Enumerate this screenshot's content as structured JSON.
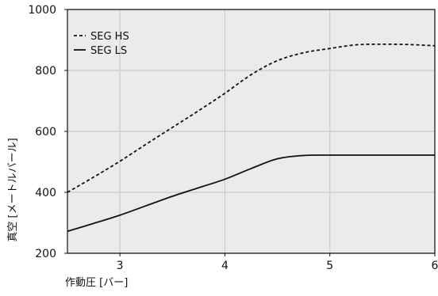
{
  "chart_data": {
    "type": "line",
    "xlabel": "作動圧 [バー]",
    "ylabel": "真空 [メートルバール]",
    "xlim": [
      2.5,
      6
    ],
    "ylim": [
      200,
      1000
    ],
    "xticks": [
      3,
      4,
      5,
      6
    ],
    "yticks": [
      200,
      400,
      600,
      800,
      1000
    ],
    "grid": true,
    "legend_position": "top-left",
    "colors": {
      "plot_bg": "#ebebeb",
      "grid": "#cfcfcf",
      "line": "#111111"
    },
    "series": [
      {
        "name": "SEG HS",
        "style": "dashed",
        "x": [
          2.5,
          2.75,
          3.0,
          3.25,
          3.5,
          3.75,
          4.0,
          4.25,
          4.5,
          4.75,
          5.0,
          5.25,
          5.5,
          5.75,
          6.0
        ],
        "y": [
          400,
          450,
          502,
          558,
          613,
          668,
          725,
          786,
          832,
          858,
          872,
          884,
          886,
          885,
          881
        ]
      },
      {
        "name": "SEG LS",
        "style": "solid",
        "x": [
          2.5,
          2.75,
          3.0,
          3.25,
          3.5,
          3.75,
          4.0,
          4.25,
          4.5,
          4.75,
          5.0,
          5.25,
          5.5,
          5.75,
          6.0
        ],
        "y": [
          272,
          298,
          325,
          356,
          387,
          415,
          443,
          478,
          510,
          521,
          522,
          522,
          522,
          522,
          522
        ]
      }
    ]
  }
}
